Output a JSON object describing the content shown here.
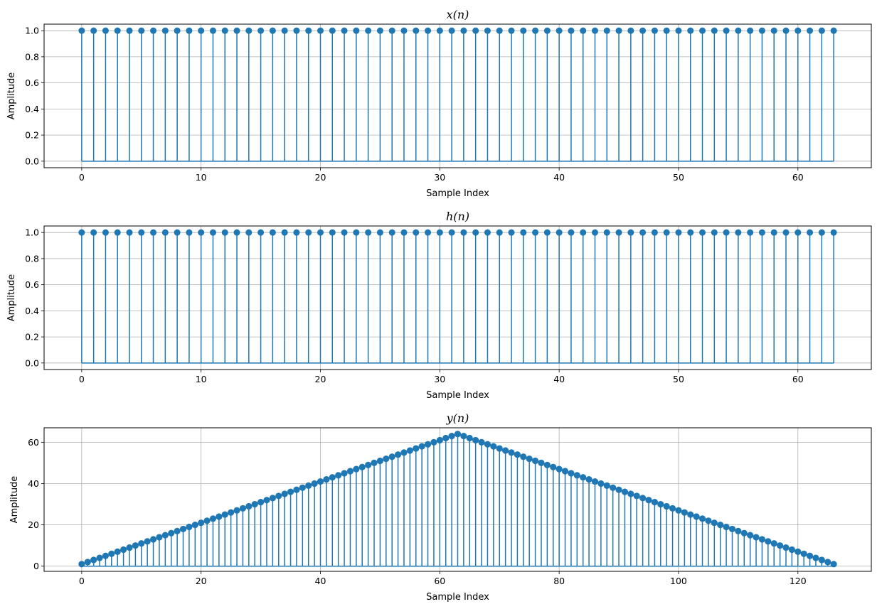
{
  "chart_data": [
    {
      "type": "stem",
      "title": "x(n)",
      "xlabel": "Sample Index",
      "ylabel": "Amplitude",
      "xlim": [
        -3.15,
        66.15
      ],
      "ylim": [
        -0.05,
        1.05
      ],
      "xticks": [
        0,
        10,
        20,
        30,
        40,
        50,
        60
      ],
      "xtick_labels": [
        "0",
        "10",
        "20",
        "30",
        "40",
        "50",
        "60"
      ],
      "yticks": [
        0.0,
        0.2,
        0.4,
        0.6,
        0.8,
        1.0
      ],
      "ytick_labels": [
        "0.0",
        "0.2",
        "0.4",
        "0.6",
        "0.8",
        "1.0"
      ],
      "grid": true,
      "color": "#1f77b4",
      "x_start": 0,
      "x_end": 63,
      "values": [
        1,
        1,
        1,
        1,
        1,
        1,
        1,
        1,
        1,
        1,
        1,
        1,
        1,
        1,
        1,
        1,
        1,
        1,
        1,
        1,
        1,
        1,
        1,
        1,
        1,
        1,
        1,
        1,
        1,
        1,
        1,
        1,
        1,
        1,
        1,
        1,
        1,
        1,
        1,
        1,
        1,
        1,
        1,
        1,
        1,
        1,
        1,
        1,
        1,
        1,
        1,
        1,
        1,
        1,
        1,
        1,
        1,
        1,
        1,
        1,
        1,
        1,
        1,
        1
      ]
    },
    {
      "type": "stem",
      "title": "h(n)",
      "xlabel": "Sample Index",
      "ylabel": "Amplitude",
      "xlim": [
        -3.15,
        66.15
      ],
      "ylim": [
        -0.05,
        1.05
      ],
      "xticks": [
        0,
        10,
        20,
        30,
        40,
        50,
        60
      ],
      "xtick_labels": [
        "0",
        "10",
        "20",
        "30",
        "40",
        "50",
        "60"
      ],
      "yticks": [
        0.0,
        0.2,
        0.4,
        0.6,
        0.8,
        1.0
      ],
      "ytick_labels": [
        "0.0",
        "0.2",
        "0.4",
        "0.6",
        "0.8",
        "1.0"
      ],
      "grid": true,
      "color": "#1f77b4",
      "x_start": 0,
      "x_end": 63,
      "values": [
        1,
        1,
        1,
        1,
        1,
        1,
        1,
        1,
        1,
        1,
        1,
        1,
        1,
        1,
        1,
        1,
        1,
        1,
        1,
        1,
        1,
        1,
        1,
        1,
        1,
        1,
        1,
        1,
        1,
        1,
        1,
        1,
        1,
        1,
        1,
        1,
        1,
        1,
        1,
        1,
        1,
        1,
        1,
        1,
        1,
        1,
        1,
        1,
        1,
        1,
        1,
        1,
        1,
        1,
        1,
        1,
        1,
        1,
        1,
        1,
        1,
        1,
        1,
        1
      ]
    },
    {
      "type": "stem",
      "title": "y(n)",
      "xlabel": "Sample Index",
      "ylabel": "Amplitude",
      "xlim": [
        -6.3,
        132.3
      ],
      "ylim": [
        -2.5,
        67.0
      ],
      "xticks": [
        0,
        20,
        40,
        60,
        80,
        100,
        120
      ],
      "xtick_labels": [
        "0",
        "20",
        "40",
        "60",
        "80",
        "100",
        "120"
      ],
      "yticks": [
        0,
        20,
        40,
        60
      ],
      "ytick_labels": [
        "0",
        "20",
        "40",
        "60"
      ],
      "grid": true,
      "color": "#1f77b4",
      "x_start": 0,
      "x_end": 126,
      "values": [
        1,
        2,
        3,
        4,
        5,
        6,
        7,
        8,
        9,
        10,
        11,
        12,
        13,
        14,
        15,
        16,
        17,
        18,
        19,
        20,
        21,
        22,
        23,
        24,
        25,
        26,
        27,
        28,
        29,
        30,
        31,
        32,
        33,
        34,
        35,
        36,
        37,
        38,
        39,
        40,
        41,
        42,
        43,
        44,
        45,
        46,
        47,
        48,
        49,
        50,
        51,
        52,
        53,
        54,
        55,
        56,
        57,
        58,
        59,
        60,
        61,
        62,
        63,
        64,
        63,
        62,
        61,
        60,
        59,
        58,
        57,
        56,
        55,
        54,
        53,
        52,
        51,
        50,
        49,
        48,
        47,
        46,
        45,
        44,
        43,
        42,
        41,
        40,
        39,
        38,
        37,
        36,
        35,
        34,
        33,
        32,
        31,
        30,
        29,
        28,
        27,
        26,
        25,
        24,
        23,
        22,
        21,
        20,
        19,
        18,
        17,
        16,
        15,
        14,
        13,
        12,
        11,
        10,
        9,
        8,
        7,
        6,
        5,
        4,
        3,
        2,
        1
      ]
    }
  ]
}
